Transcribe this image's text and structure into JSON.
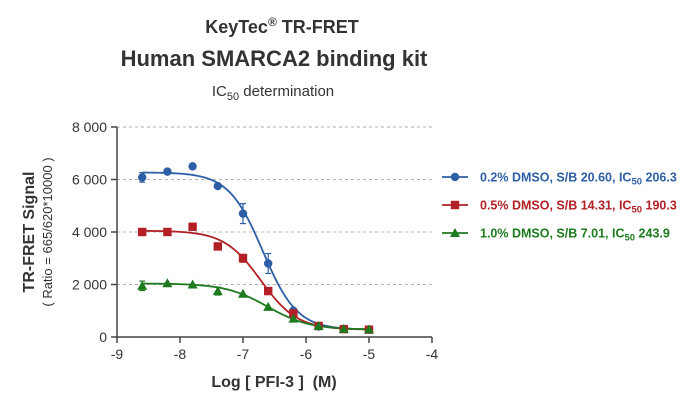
{
  "header": {
    "title_brand": "KeyTec",
    "title_reg": "®",
    "title_rest": " TR-FRET",
    "subtitle": "Human SMARCA2 binding kit",
    "subtitle2_main": "IC",
    "subtitle2_sub": "50",
    "subtitle2_rest": " determination"
  },
  "chart_data": {
    "type": "scatter",
    "title": "KeyTec® TR-FRET Human SMARCA2 binding kit",
    "subtitle": "IC50 determination",
    "xlabel": "Log [ PFI-3 ]  (M)",
    "ylabel": "TR-FRET Signal",
    "ylabel2": "( Ratio = 665/620*10000 )",
    "xlim": [
      -9,
      -4
    ],
    "ylim": [
      0,
      8000
    ],
    "x_ticks": [
      -9,
      -8,
      -7,
      -6,
      -5,
      -4
    ],
    "x_tick_labels": [
      "-9",
      "-8",
      "-7",
      "-6",
      "-5",
      "-4"
    ],
    "y_ticks": [
      0,
      2000,
      4000,
      6000,
      8000
    ],
    "y_tick_labels": [
      "0",
      "2 000",
      "4 000",
      "6 000",
      "8 000"
    ],
    "grid": "horizontal dashed",
    "legend_position": "right",
    "series": [
      {
        "name": "0.2% DMSO, S/B 20.60, IC50 206.3",
        "legend_pre": "0.2% DMSO, S/B 20.60, IC",
        "legend_sub": "50",
        "legend_post": " 206.3",
        "color": "#2e5fa6",
        "marker": "circle",
        "x": [
          -8.6,
          -8.2,
          -7.8,
          -7.4,
          -7.0,
          -6.6,
          -6.2,
          -5.8,
          -5.4,
          -5.0
        ],
        "y": [
          6080,
          6300,
          6500,
          5750,
          4700,
          2800,
          1000,
          400,
          300,
          280
        ],
        "err": [
          180,
          0,
          0,
          0,
          380,
          380,
          0,
          0,
          0,
          0
        ],
        "fit": {
          "top": 6270,
          "bottom": 280,
          "logIC50": -6.686,
          "hill": 1.6
        }
      },
      {
        "name": "0.5% DMSO, S/B 14.31, IC50 190.3",
        "legend_pre": "0.5% DMSO, S/B 14.31, IC",
        "legend_sub": "50",
        "legend_post": " 190.3",
        "color": "#b21f24",
        "marker": "square",
        "x": [
          -8.6,
          -8.2,
          -7.8,
          -7.4,
          -7.0,
          -6.6,
          -6.2,
          -5.8,
          -5.4,
          -5.0
        ],
        "y": [
          4000,
          4000,
          4200,
          3450,
          3000,
          1750,
          900,
          420,
          300,
          280
        ],
        "err": [
          120,
          0,
          0,
          0,
          150,
          0,
          0,
          0,
          0,
          0
        ],
        "fit": {
          "top": 4050,
          "bottom": 280,
          "logIC50": -6.72,
          "hill": 1.5
        }
      },
      {
        "name": "1.0% DMSO, S/B 7.01, IC50 243.9",
        "legend_pre": "1.0% DMSO, S/B 7.01, IC",
        "legend_sub": "50",
        "legend_post": " 243.9",
        "color": "#1e7a1e",
        "marker": "triangle",
        "x": [
          -8.6,
          -8.2,
          -7.8,
          -7.4,
          -7.0,
          -6.6,
          -6.2,
          -5.8,
          -5.4,
          -5.0
        ],
        "y": [
          1950,
          2050,
          2000,
          1750,
          1650,
          1150,
          700,
          420,
          310,
          290
        ],
        "err": [
          180,
          0,
          0,
          150,
          0,
          0,
          0,
          0,
          0,
          0
        ],
        "fit": {
          "top": 2040,
          "bottom": 280,
          "logIC50": -6.613,
          "hill": 1.3
        }
      }
    ]
  }
}
